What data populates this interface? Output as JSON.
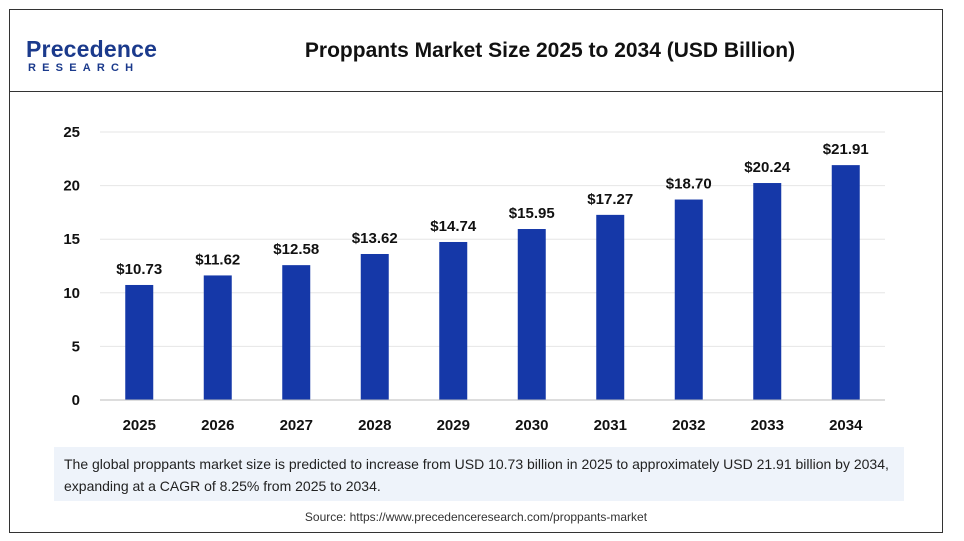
{
  "header": {
    "logo_top": "Precedence",
    "logo_bottom": "RESEARCH",
    "title": "Proppants Market Size 2025 to 2034 (USD Billion)"
  },
  "colors": {
    "bar": "#1538a8",
    "grid": "#e6e6e6",
    "brand": "#1b3a8c"
  },
  "chart_data": {
    "type": "bar",
    "title": "Proppants Market Size 2025 to 2034 (USD Billion)",
    "xlabel": "",
    "ylabel": "",
    "categories": [
      "2025",
      "2026",
      "2027",
      "2028",
      "2029",
      "2030",
      "2031",
      "2032",
      "2033",
      "2034"
    ],
    "values": [
      10.73,
      11.62,
      12.58,
      13.62,
      14.74,
      15.95,
      17.27,
      18.7,
      20.24,
      21.91
    ],
    "data_labels": [
      "$10.73",
      "$11.62",
      "$12.58",
      "$13.62",
      "$14.74",
      "$15.95",
      "$17.27",
      "$18.70",
      "$20.24",
      "$21.91"
    ],
    "ylim": [
      0,
      25
    ],
    "yticks": [
      "0",
      "5",
      "10",
      "15",
      "20",
      "25"
    ],
    "grid": true,
    "legend": "none"
  },
  "note": "The global proppants market size is predicted to increase from USD 10.73 billion in 2025 to approximately USD 21.91 billion by 2034, expanding at a CAGR of 8.25% from 2025 to 2034.",
  "source": "Source: https://www.precedenceresearch.com/proppants-market"
}
